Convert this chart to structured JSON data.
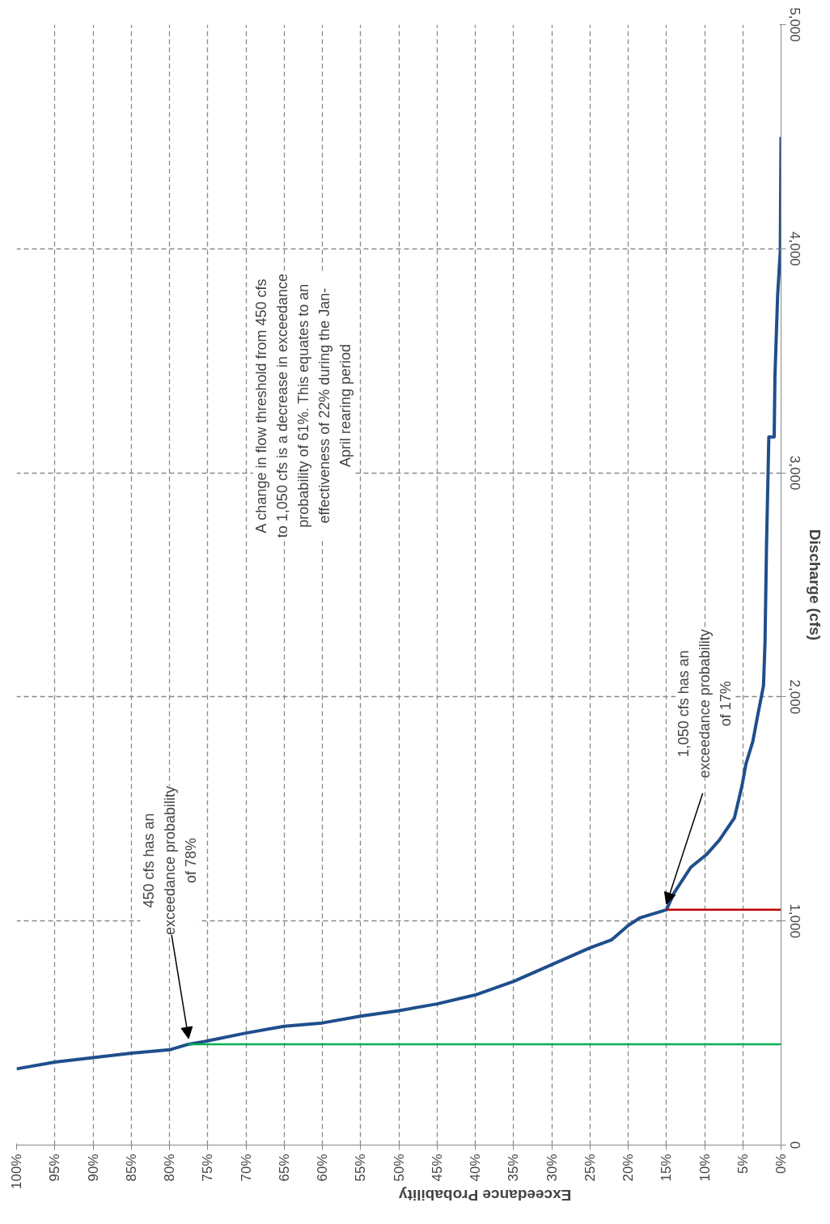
{
  "chart_data": {
    "type": "line",
    "xlabel": "Exceedance Probability",
    "ylabel": "Discharge (cfs)",
    "xlim": [
      100,
      0
    ],
    "ylim": [
      0,
      5000
    ],
    "xticks": [
      {
        "value": 100,
        "label": "100%"
      },
      {
        "value": 95,
        "label": "95%"
      },
      {
        "value": 90,
        "label": "90%"
      },
      {
        "value": 85,
        "label": "85%"
      },
      {
        "value": 80,
        "label": "80%"
      },
      {
        "value": 75,
        "label": "75%"
      },
      {
        "value": 70,
        "label": "70%"
      },
      {
        "value": 65,
        "label": "65%"
      },
      {
        "value": 60,
        "label": "60%"
      },
      {
        "value": 55,
        "label": "55%"
      },
      {
        "value": 50,
        "label": "50%"
      },
      {
        "value": 45,
        "label": "45%"
      },
      {
        "value": 40,
        "label": "40%"
      },
      {
        "value": 35,
        "label": "35%"
      },
      {
        "value": 30,
        "label": "30%"
      },
      {
        "value": 25,
        "label": "25%"
      },
      {
        "value": 20,
        "label": "20%"
      },
      {
        "value": 15,
        "label": "15%"
      },
      {
        "value": 10,
        "label": "10%"
      },
      {
        "value": 5,
        "label": "5%"
      },
      {
        "value": 0,
        "label": "0%"
      }
    ],
    "yticks": [
      0,
      {
        "value": 1000,
        "label": "1,000"
      },
      {
        "value": 2000,
        "label": "2,000"
      },
      {
        "value": 3000,
        "label": "3,000"
      },
      {
        "value": 4000,
        "label": "4,000"
      },
      {
        "value": 5000,
        "label": "5,000"
      }
    ],
    "grid": true,
    "marker": "none",
    "line_style": "solid",
    "series": [
      {
        "color": "#1f4e8c",
        "x": [
          100,
          95,
          90,
          85,
          80,
          77.5,
          75,
          70,
          65,
          60,
          55,
          50,
          45,
          40,
          35,
          30,
          25,
          22.2,
          20,
          18.4,
          15,
          14,
          11.8,
          9.8,
          8.1,
          7.2,
          6.1,
          5.1,
          4.6,
          3.7,
          3.1,
          2.3,
          2.1,
          1.9,
          1.6,
          0.9,
          0.8,
          0.45,
          0.1,
          0
        ],
        "values": [
          340,
          370,
          390,
          410,
          425,
          450,
          465,
          500,
          530,
          545,
          575,
          600,
          630,
          670,
          730,
          805,
          880,
          915,
          980,
          1015,
          1050,
          1125,
          1240,
          1295,
          1360,
          1405,
          1460,
          1605,
          1700,
          1800,
          1910,
          2050,
          2240,
          2680,
          3160,
          3160,
          3430,
          3790,
          3990,
          4500
        ]
      },
      {
        "color": "#00b050",
        "x": [
          77.5,
          0
        ],
        "values": [
          450,
          450
        ]
      },
      {
        "color": "#c00000",
        "x": [
          15,
          0
        ],
        "values": [
          1050,
          1050
        ]
      }
    ],
    "annotations": [
      {
        "text": "450 cfs has an exceedance probability of 78%",
        "x": 77.5,
        "y": 450
      },
      {
        "text": "1,050 cfs has an exceedance probability of 17%",
        "x": 15,
        "y": 1050
      },
      "A change in flow threshold from 450 cfs to 1,050 cfs is a decrease in exceedance probability of 61%. This equates to an effectiveness of 22% during the Jan-April rearing period"
    ]
  }
}
